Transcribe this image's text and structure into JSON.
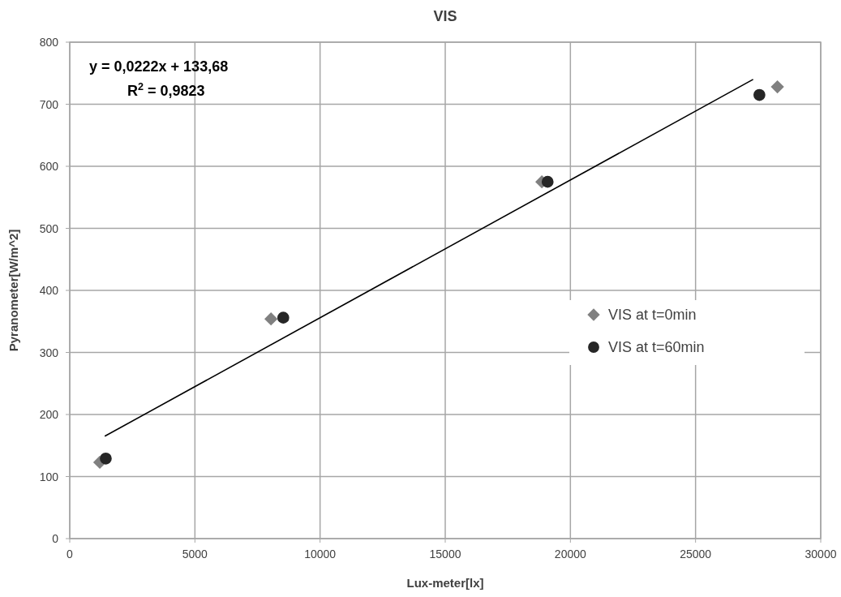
{
  "chart_data": {
    "type": "scatter",
    "title": "VIS",
    "xlabel": "Lux-meter[lx]",
    "ylabel": "Pyranometer[W/m^2]",
    "xlim": [
      0,
      30000
    ],
    "xticks": [
      0,
      5000,
      10000,
      15000,
      20000,
      25000,
      30000
    ],
    "ylim": [
      0,
      800
    ],
    "yticks": [
      0,
      100,
      200,
      300,
      400,
      500,
      600,
      700,
      800
    ],
    "grid": true,
    "legend": "right",
    "annotations": [
      "y = 0,0222x + 133,68",
      "R$^{2}$ = 0,9823"
    ],
    "series": [
      {
        "name": "VIS at t=0min",
        "marker": "diamond",
        "color": "#808080",
        "x": [
          1200,
          8040,
          18860,
          28270
        ],
        "values": [
          123,
          354,
          575,
          728
        ]
      },
      {
        "name": "VIS at t=60min",
        "marker": "circle",
        "color": "#262626",
        "x": [
          1440,
          8530,
          19090,
          27550
        ],
        "values": [
          129,
          356,
          575,
          715
        ]
      },
      {
        "type": "line",
        "marker": "none",
        "color": "#000000",
        "x": [
          1400,
          27300
        ],
        "values": [
          165,
          740
        ]
      }
    ]
  }
}
